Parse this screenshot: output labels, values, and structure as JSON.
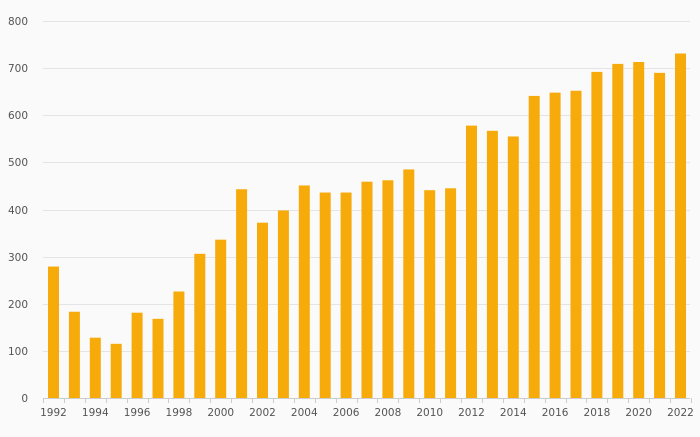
{
  "chart_data": {
    "type": "bar",
    "title": "",
    "xlabel": "",
    "ylabel": "",
    "grid": true,
    "legend": "none",
    "bar_color": "#f7ab0a",
    "ylim": [
      0,
      800
    ],
    "y_ticks": [
      0,
      100,
      200,
      300,
      400,
      500,
      600,
      700,
      800
    ],
    "x_tick_labels": [
      "1992",
      "1994",
      "1996",
      "1998",
      "2000",
      "2002",
      "2004",
      "2006",
      "2008",
      "2010",
      "2012",
      "2014",
      "2016",
      "2018",
      "2020",
      "2022"
    ],
    "categories": [
      "1992",
      "1993",
      "1994",
      "1995",
      "1996",
      "1997",
      "1998",
      "1999",
      "2000",
      "2001",
      "2002",
      "2003",
      "2004",
      "2005",
      "2006",
      "2007",
      "2008",
      "2009",
      "2010",
      "2011",
      "2012",
      "2013",
      "2014",
      "2015",
      "2016",
      "2017",
      "2018",
      "2019",
      "2020",
      "2021",
      "2022"
    ],
    "values": [
      279,
      183,
      128,
      115,
      181,
      168,
      226,
      306,
      336,
      443,
      372,
      398,
      451,
      436,
      436,
      459,
      462,
      485,
      441,
      445,
      578,
      567,
      555,
      641,
      648,
      652,
      692,
      709,
      713,
      690,
      731
    ]
  }
}
